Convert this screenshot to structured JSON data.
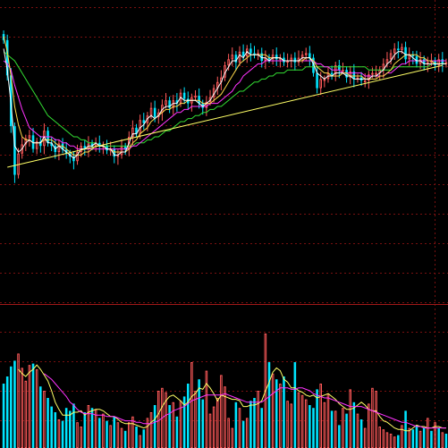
{
  "colors": {
    "background": "#000000",
    "grid": "#7a1010",
    "separator": "#a01818",
    "up_candle": "#ff5a5a",
    "down_candle": "#00e5ff",
    "ma_short": "#ffffff",
    "ma_mid": "#ffd84a",
    "ma_long": "#ff33ff",
    "ma_longest": "#33dd33",
    "trendline": "#ffff66",
    "vol_ma_short": "#ffff66",
    "vol_ma_long": "#ff33ff"
  },
  "chart_data": [
    {
      "type": "candlestick",
      "panel": "price",
      "x": [
        0,
        1,
        2,
        3,
        4,
        5,
        6,
        7,
        8,
        9,
        10,
        11,
        12,
        13,
        14,
        15,
        16,
        17,
        18,
        19,
        20,
        21,
        22,
        23,
        24,
        25,
        26,
        27,
        28,
        29,
        30,
        31,
        32,
        33,
        34,
        35,
        36,
        37,
        38,
        39,
        40,
        41,
        42,
        43,
        44,
        45,
        46,
        47,
        48,
        49,
        50,
        51,
        52,
        53,
        54,
        55,
        56,
        57,
        58,
        59,
        60,
        61,
        62,
        63,
        64,
        65,
        66,
        67,
        68,
        69,
        70,
        71,
        72,
        73,
        74,
        75,
        76,
        77,
        78,
        79,
        80,
        81,
        82,
        83,
        84,
        85,
        86,
        87,
        88,
        89,
        90,
        91,
        92,
        93,
        94,
        95,
        96,
        97,
        98,
        99,
        100,
        101,
        102,
        103,
        104,
        105,
        106,
        107,
        108,
        109,
        110,
        111,
        112,
        113,
        114,
        115,
        116,
        117,
        118,
        119,
        120
      ],
      "close": [
        86.8,
        75.2,
        58.5,
        42.5,
        49.5,
        52.5,
        54.5,
        55.5,
        51.0,
        53.5,
        52.0,
        57.0,
        53.0,
        52.0,
        50.0,
        52.8,
        50.8,
        49.5,
        48.5,
        47.0,
        50.0,
        52.0,
        51.0,
        52.8,
        51.8,
        53.0,
        52.0,
        52.2,
        50.5,
        51.0,
        48.5,
        49.0,
        51.8,
        50.8,
        55.0,
        58.0,
        56.0,
        60.5,
        59.5,
        62.0,
        64.5,
        61.5,
        63.0,
        65.5,
        67.0,
        64.5,
        67.0,
        66.0,
        69.5,
        67.5,
        66.0,
        68.0,
        68.5,
        66.0,
        64.5,
        66.5,
        68.0,
        71.0,
        73.0,
        74.5,
        78.5,
        80.5,
        82.0,
        79.5,
        83.0,
        81.5,
        84.0,
        82.5,
        82.0,
        82.5,
        80.0,
        81.0,
        80.5,
        82.0,
        80.5,
        81.0,
        79.5,
        80.0,
        81.0,
        79.5,
        81.0,
        82.0,
        82.5,
        81.0,
        76.0,
        71.0,
        74.0,
        74.0,
        76.0,
        75.5,
        78.5,
        77.0,
        77.0,
        74.5,
        76.5,
        74.0,
        74.5,
        73.5,
        73.5,
        75.5,
        76.0,
        76.0,
        77.0,
        79.0,
        80.5,
        82.5,
        84.0,
        83.5,
        84.5,
        80.5,
        82.0,
        81.5,
        79.0,
        80.5,
        79.0,
        79.5,
        80.0,
        78.5,
        80.5,
        79.0,
        79.5
      ],
      "ma_short": [
        84,
        77,
        66,
        52,
        50,
        51,
        53,
        54,
        53,
        53,
        53,
        55,
        53,
        53,
        51,
        52,
        51,
        50,
        49,
        48,
        49,
        51,
        51,
        52,
        52,
        53,
        52,
        52,
        51,
        51,
        49,
        49,
        50,
        50,
        53,
        56,
        56,
        58,
        59,
        61,
        62,
        61,
        62,
        64,
        65,
        65,
        66,
        66,
        68,
        67,
        67,
        67,
        67,
        66,
        65,
        66,
        67,
        69,
        71,
        73,
        76,
        78,
        80,
        80,
        82,
        81,
        83,
        82,
        82,
        82,
        81,
        81,
        80,
        81,
        81,
        81,
        80,
        80,
        80,
        80,
        80,
        81,
        81,
        81,
        79,
        76,
        75,
        74,
        75,
        75,
        76,
        76,
        76,
        75,
        75,
        74,
        74,
        74,
        74,
        74,
        75,
        75,
        76,
        77,
        79,
        80,
        82,
        83,
        83,
        82,
        82,
        81,
        80,
        80,
        79,
        79,
        79,
        79,
        79,
        79,
        79
      ],
      "ma_mid": [
        88,
        83,
        75,
        65,
        59,
        55,
        54,
        54,
        53,
        53,
        53,
        54,
        54,
        54,
        53,
        52,
        52,
        51,
        50,
        49,
        49,
        49,
        50,
        50,
        51,
        52,
        52,
        52,
        51,
        51,
        50,
        50,
        50,
        50,
        51,
        53,
        54,
        56,
        57,
        58,
        60,
        61,
        62,
        63,
        64,
        64,
        65,
        65,
        66,
        66,
        67,
        67,
        67,
        67,
        66,
        66,
        66,
        67,
        68,
        69,
        71,
        73,
        75,
        77,
        79,
        80,
        81,
        82,
        82,
        82,
        82,
        82,
        81,
        81,
        81,
        81,
        80,
        80,
        80,
        80,
        80,
        80,
        81,
        81,
        80,
        78,
        77,
        76,
        76,
        75,
        75,
        75,
        76,
        76,
        75,
        75,
        75,
        75,
        74,
        74,
        74,
        74,
        75,
        75,
        76,
        77,
        79,
        80,
        81,
        82,
        82,
        82,
        82,
        81,
        81,
        80,
        80,
        79,
        79,
        79,
        79
      ],
      "ma_long": [
        80,
        79,
        77,
        72,
        68,
        64,
        61,
        58,
        57,
        56,
        55,
        55,
        55,
        55,
        54,
        54,
        53,
        53,
        52,
        52,
        51,
        51,
        51,
        51,
        51,
        51,
        51,
        51,
        51,
        51,
        51,
        51,
        51,
        51,
        51,
        52,
        52,
        53,
        54,
        55,
        56,
        57,
        58,
        59,
        60,
        61,
        62,
        63,
        63,
        64,
        64,
        65,
        65,
        65,
        65,
        65,
        66,
        66,
        66,
        67,
        68,
        69,
        70,
        72,
        73,
        75,
        76,
        77,
        78,
        79,
        79,
        80,
        80,
        80,
        80,
        80,
        80,
        80,
        80,
        80,
        80,
        80,
        80,
        80,
        80,
        79,
        79,
        78,
        78,
        77,
        77,
        77,
        76,
        76,
        76,
        76,
        76,
        76,
        75,
        75,
        75,
        75,
        75,
        75,
        76,
        76,
        77,
        78,
        79,
        79,
        80,
        80,
        80,
        80,
        80,
        80,
        80,
        80,
        80,
        80,
        80
      ],
      "ma_longest": [
        83,
        82,
        81,
        80,
        78,
        76,
        74,
        72,
        70,
        68,
        66,
        64,
        62,
        61,
        60,
        59,
        58,
        57,
        56,
        55,
        55,
        54,
        54,
        53,
        53,
        53,
        52,
        52,
        52,
        52,
        52,
        52,
        52,
        52,
        52,
        52,
        53,
        53,
        53,
        54,
        54,
        55,
        55,
        56,
        57,
        57,
        58,
        59,
        60,
        60,
        61,
        61,
        62,
        62,
        63,
        63,
        64,
        64,
        65,
        65,
        66,
        67,
        68,
        69,
        70,
        70,
        71,
        72,
        73,
        73,
        74,
        74,
        75,
        75,
        76,
        76,
        76,
        77,
        77,
        77,
        77,
        77,
        78,
        78,
        78,
        78,
        78,
        78,
        78,
        78,
        78,
        78,
        78,
        78,
        78,
        78,
        78,
        78,
        78,
        77,
        77,
        77,
        77,
        77,
        77,
        77,
        78,
        78,
        78,
        78,
        78,
        78,
        78,
        78,
        78,
        78,
        79,
        79,
        79,
        79,
        79
      ],
      "trendline": {
        "from": [
          1,
          45.0
        ],
        "to": [
          119,
          78.5
        ]
      },
      "ylim": [
        0,
        100
      ]
    },
    {
      "type": "bar",
      "panel": "volume",
      "x": [
        0,
        1,
        2,
        3,
        4,
        5,
        6,
        7,
        8,
        9,
        10,
        11,
        12,
        13,
        14,
        15,
        16,
        17,
        18,
        19,
        20,
        21,
        22,
        23,
        24,
        25,
        26,
        27,
        28,
        29,
        30,
        31,
        32,
        33,
        34,
        35,
        36,
        37,
        38,
        39,
        40,
        41,
        42,
        43,
        44,
        45,
        46,
        47,
        48,
        49,
        50,
        51,
        52,
        53,
        54,
        55,
        56,
        57,
        58,
        59,
        60,
        61,
        62,
        63,
        64,
        65,
        66,
        67,
        68,
        69,
        70,
        71,
        72,
        73,
        74,
        75,
        76,
        77,
        78,
        79,
        80,
        81,
        82,
        83,
        84,
        85,
        86,
        87,
        88,
        89,
        90,
        91,
        92,
        93,
        94,
        95,
        96,
        97,
        98,
        99,
        100,
        101,
        102,
        103,
        104,
        105,
        106,
        107,
        108,
        109,
        110,
        111,
        112,
        113,
        114,
        115,
        116,
        117,
        118,
        119,
        120
      ],
      "values": [
        45,
        50,
        57,
        61,
        66,
        56,
        47,
        58,
        59,
        55,
        43,
        40,
        35,
        29,
        25,
        20,
        19,
        28,
        26,
        31,
        18,
        15,
        25,
        30,
        28,
        27,
        21,
        24,
        19,
        16,
        22,
        18,
        14,
        12,
        18,
        22,
        15,
        9,
        13,
        21,
        25,
        30,
        40,
        42,
        39,
        30,
        32,
        22,
        33,
        36,
        45,
        60,
        40,
        48,
        34,
        54,
        24,
        29,
        35,
        51,
        43,
        21,
        14,
        32,
        28,
        19,
        21,
        33,
        35,
        40,
        28,
        80,
        60,
        52,
        48,
        45,
        50,
        33,
        31,
        60,
        39,
        37,
        34,
        30,
        28,
        41,
        45,
        32,
        38,
        26,
        26,
        16,
        28,
        24,
        41,
        32,
        24,
        20,
        14,
        31,
        42,
        40,
        15,
        13,
        11,
        10,
        8,
        9,
        16,
        26,
        14,
        13,
        16,
        12,
        14,
        21,
        12,
        18,
        14,
        11,
        10
      ],
      "colors": [
        "down",
        "down",
        "down",
        "down",
        "up",
        "up",
        "up",
        "up",
        "down",
        "up",
        "down",
        "up",
        "down",
        "down",
        "down",
        "up",
        "down",
        "down",
        "down",
        "down",
        "up",
        "up",
        "down",
        "up",
        "down",
        "up",
        "down",
        "up",
        "down",
        "up",
        "down",
        "up",
        "up",
        "down",
        "up",
        "up",
        "down",
        "up",
        "down",
        "up",
        "up",
        "down",
        "up",
        "up",
        "up",
        "down",
        "up",
        "down",
        "up",
        "down",
        "down",
        "up",
        "up",
        "down",
        "down",
        "up",
        "up",
        "up",
        "up",
        "up",
        "up",
        "up",
        "up",
        "down",
        "up",
        "down",
        "up",
        "down",
        "down",
        "up",
        "down",
        "up",
        "down",
        "up",
        "down",
        "up",
        "down",
        "up",
        "up",
        "down",
        "up",
        "up",
        "up",
        "down",
        "down",
        "down",
        "up",
        "up",
        "up",
        "down",
        "up",
        "down",
        "up",
        "down",
        "up",
        "down",
        "up",
        "down",
        "up",
        "up",
        "up",
        "up",
        "up",
        "up",
        "up",
        "up",
        "up",
        "down",
        "up",
        "down",
        "up",
        "down",
        "down",
        "up",
        "down",
        "up",
        "down",
        "up",
        "down",
        "up",
        "down"
      ],
      "vol_ma_short": [
        null,
        null,
        null,
        null,
        55,
        52,
        50,
        53,
        55,
        58,
        55,
        51,
        47,
        40,
        32,
        27,
        23,
        23,
        23,
        25,
        25,
        26,
        23,
        25,
        26,
        27,
        27,
        26,
        24,
        22,
        22,
        20,
        18,
        17,
        17,
        17,
        16,
        15,
        14,
        15,
        18,
        20,
        24,
        29,
        33,
        36,
        37,
        35,
        33,
        30,
        32,
        36,
        38,
        42,
        41,
        45,
        42,
        38,
        33,
        37,
        36,
        35,
        34,
        34,
        33,
        29,
        29,
        30,
        30,
        31,
        33,
        40,
        46,
        53,
        56,
        54,
        48,
        46,
        42,
        42,
        40,
        39,
        37,
        36,
        37,
        35,
        36,
        37,
        38,
        36,
        34,
        31,
        29,
        27,
        27,
        28,
        30,
        32,
        30,
        27,
        26,
        26,
        22,
        19,
        18,
        16,
        14,
        13,
        13,
        12,
        12,
        14,
        16,
        15,
        15,
        14,
        14,
        15,
        15,
        14,
        14
      ],
      "vol_ma_long": [
        null,
        null,
        null,
        null,
        null,
        null,
        null,
        null,
        null,
        null,
        null,
        52,
        50,
        48,
        45,
        42,
        39,
        36,
        32,
        30,
        27,
        25,
        24,
        24,
        24,
        23,
        23,
        23,
        22,
        22,
        22,
        21,
        20,
        19,
        19,
        19,
        18,
        18,
        17,
        17,
        17,
        18,
        19,
        21,
        23,
        24,
        26,
        27,
        28,
        29,
        31,
        33,
        34,
        35,
        36,
        37,
        37,
        37,
        37,
        37,
        38,
        37,
        36,
        35,
        34,
        33,
        32,
        32,
        32,
        32,
        32,
        34,
        36,
        38,
        40,
        42,
        42,
        42,
        41,
        41,
        42,
        42,
        41,
        40,
        38,
        37,
        36,
        35,
        35,
        34,
        33,
        32,
        31,
        30,
        29,
        29,
        29,
        29,
        28,
        27,
        26,
        25,
        24,
        23,
        22,
        21,
        20,
        19,
        18,
        18,
        17,
        16,
        15,
        15,
        14,
        14,
        14,
        14,
        14,
        14,
        14
      ],
      "ylim": [
        0,
        100
      ]
    }
  ]
}
